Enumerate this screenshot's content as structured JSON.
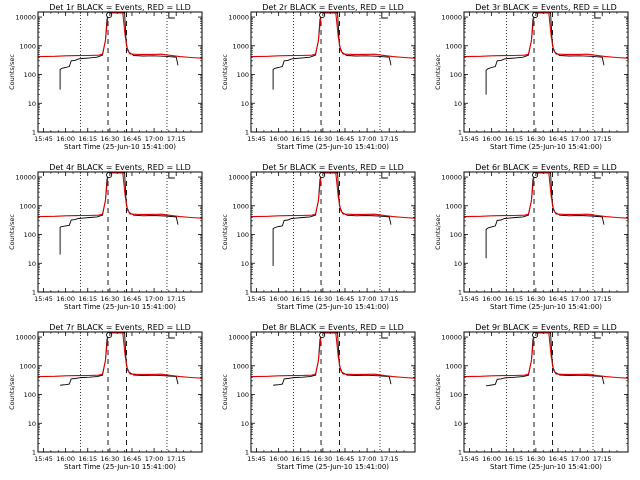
{
  "chart_data": {
    "type": "line",
    "title_suffix": "BLACK = Events, RED = LLD",
    "xlabel": "Start Time (25-Jun-10 15:41:00)",
    "ylabel": "Counts/sec",
    "y_scale": "log",
    "ylim": [
      1,
      15000
    ],
    "xlim": [
      -0.15,
      4.3
    ],
    "x_tick_labels": [
      "15:45",
      "16:00",
      "16:15",
      "16:30",
      "16:45",
      "17:00",
      "17:15"
    ],
    "y_tick_labels": [
      "1",
      "10",
      "100",
      "1000",
      "10000"
    ],
    "y_tick_values": [
      1,
      10,
      100,
      1000,
      10000
    ],
    "dotted_lines_x": [
      1.0,
      3.35
    ],
    "dashed_lines_x": [
      1.75,
      2.25
    ],
    "top_markers": [
      {
        "x": 1.78,
        "shape": "circle"
      },
      {
        "x": 3.4,
        "shape": "bracket"
      }
    ],
    "lld_curve": [
      [
        -0.15,
        420
      ],
      [
        0.3,
        430
      ],
      [
        0.6,
        450
      ],
      [
        0.9,
        455
      ],
      [
        1.2,
        460
      ],
      [
        1.5,
        470
      ],
      [
        1.6,
        520
      ],
      [
        1.68,
        1500
      ],
      [
        1.72,
        5000
      ],
      [
        1.76,
        14000
      ],
      [
        2.15,
        14000
      ],
      [
        2.22,
        2000
      ],
      [
        2.28,
        700
      ],
      [
        2.35,
        520
      ],
      [
        2.6,
        500
      ],
      [
        2.9,
        500
      ],
      [
        3.2,
        510
      ],
      [
        3.4,
        470
      ],
      [
        3.7,
        420
      ],
      [
        4.0,
        390
      ],
      [
        4.3,
        370
      ]
    ],
    "panels": [
      {
        "label": "Det 1r",
        "events": [
          [
            0.45,
            30
          ],
          [
            0.45,
            150
          ],
          [
            0.5,
            165
          ],
          [
            0.6,
            175
          ],
          [
            0.7,
            190
          ],
          [
            0.75,
            300
          ],
          [
            0.85,
            310
          ],
          [
            0.95,
            350
          ],
          [
            1.05,
            360
          ],
          [
            1.25,
            380
          ],
          [
            1.45,
            400
          ],
          [
            1.6,
            470
          ],
          [
            1.68,
            1500
          ],
          [
            1.72,
            8000
          ],
          [
            1.76,
            14000
          ],
          [
            2.2,
            14000
          ],
          [
            2.25,
            1000
          ],
          [
            2.32,
            600
          ],
          [
            2.45,
            460
          ],
          [
            2.7,
            440
          ],
          [
            3.0,
            450
          ],
          [
            3.3,
            430
          ],
          [
            3.6,
            400
          ],
          [
            3.65,
            210
          ]
        ]
      },
      {
        "label": "Det 2r",
        "events": [
          [
            0.45,
            30
          ],
          [
            0.45,
            150
          ],
          [
            0.5,
            165
          ],
          [
            0.6,
            175
          ],
          [
            0.7,
            190
          ],
          [
            0.75,
            300
          ],
          [
            0.85,
            310
          ],
          [
            0.95,
            350
          ],
          [
            1.05,
            360
          ],
          [
            1.25,
            380
          ],
          [
            1.45,
            400
          ],
          [
            1.6,
            470
          ],
          [
            1.68,
            1500
          ],
          [
            1.72,
            8000
          ],
          [
            1.76,
            14000
          ],
          [
            2.2,
            14000
          ],
          [
            2.25,
            1000
          ],
          [
            2.32,
            600
          ],
          [
            2.45,
            460
          ],
          [
            2.7,
            440
          ],
          [
            3.0,
            450
          ],
          [
            3.3,
            430
          ],
          [
            3.6,
            400
          ],
          [
            3.65,
            210
          ]
        ]
      },
      {
        "label": "Det 3r",
        "events": [
          [
            0.45,
            20
          ],
          [
            0.45,
            140
          ],
          [
            0.5,
            160
          ],
          [
            0.6,
            175
          ],
          [
            0.7,
            190
          ],
          [
            0.75,
            300
          ],
          [
            0.85,
            310
          ],
          [
            0.95,
            350
          ],
          [
            1.05,
            360
          ],
          [
            1.25,
            380
          ],
          [
            1.45,
            400
          ],
          [
            1.6,
            470
          ],
          [
            1.68,
            1500
          ],
          [
            1.72,
            8000
          ],
          [
            1.76,
            14000
          ],
          [
            2.2,
            14000
          ],
          [
            2.25,
            1000
          ],
          [
            2.32,
            600
          ],
          [
            2.45,
            460
          ],
          [
            2.7,
            440
          ],
          [
            3.0,
            450
          ],
          [
            3.3,
            430
          ],
          [
            3.6,
            400
          ],
          [
            3.65,
            210
          ]
        ]
      },
      {
        "label": "Det 4r",
        "events": [
          [
            0.45,
            20
          ],
          [
            0.45,
            180
          ],
          [
            0.5,
            190
          ],
          [
            0.6,
            200
          ],
          [
            0.7,
            210
          ],
          [
            0.75,
            320
          ],
          [
            0.85,
            330
          ],
          [
            0.95,
            360
          ],
          [
            1.05,
            370
          ],
          [
            1.25,
            390
          ],
          [
            1.45,
            410
          ],
          [
            1.6,
            470
          ],
          [
            1.68,
            1500
          ],
          [
            1.72,
            8000
          ],
          [
            1.76,
            14000
          ],
          [
            2.2,
            14000
          ],
          [
            2.25,
            1000
          ],
          [
            2.32,
            600
          ],
          [
            2.45,
            470
          ],
          [
            2.7,
            450
          ],
          [
            3.0,
            460
          ],
          [
            3.3,
            440
          ],
          [
            3.6,
            410
          ],
          [
            3.65,
            220
          ]
        ]
      },
      {
        "label": "Det 5r",
        "events": [
          [
            0.45,
            8
          ],
          [
            0.45,
            160
          ],
          [
            0.5,
            175
          ],
          [
            0.6,
            190
          ],
          [
            0.7,
            200
          ],
          [
            0.75,
            310
          ],
          [
            0.85,
            320
          ],
          [
            0.95,
            360
          ],
          [
            1.05,
            370
          ],
          [
            1.25,
            390
          ],
          [
            1.45,
            410
          ],
          [
            1.6,
            470
          ],
          [
            1.68,
            1500
          ],
          [
            1.72,
            8000
          ],
          [
            1.76,
            14000
          ],
          [
            2.2,
            14000
          ],
          [
            2.25,
            1000
          ],
          [
            2.32,
            600
          ],
          [
            2.45,
            470
          ],
          [
            2.7,
            450
          ],
          [
            3.0,
            460
          ],
          [
            3.3,
            440
          ],
          [
            3.6,
            410
          ],
          [
            3.65,
            220
          ]
        ]
      },
      {
        "label": "Det 6r",
        "events": [
          [
            0.45,
            15
          ],
          [
            0.45,
            150
          ],
          [
            0.5,
            170
          ],
          [
            0.6,
            185
          ],
          [
            0.7,
            200
          ],
          [
            0.75,
            310
          ],
          [
            0.85,
            320
          ],
          [
            0.95,
            360
          ],
          [
            1.05,
            370
          ],
          [
            1.25,
            390
          ],
          [
            1.45,
            410
          ],
          [
            1.6,
            470
          ],
          [
            1.68,
            1500
          ],
          [
            1.72,
            8000
          ],
          [
            1.76,
            14000
          ],
          [
            2.2,
            14000
          ],
          [
            2.25,
            1000
          ],
          [
            2.32,
            600
          ],
          [
            2.45,
            470
          ],
          [
            2.7,
            450
          ],
          [
            3.0,
            460
          ],
          [
            3.3,
            440
          ],
          [
            3.6,
            410
          ],
          [
            3.65,
            220
          ]
        ]
      },
      {
        "label": "Det 7r",
        "events": [
          [
            0.45,
            210
          ],
          [
            0.5,
            215
          ],
          [
            0.6,
            220
          ],
          [
            0.7,
            230
          ],
          [
            0.75,
            350
          ],
          [
            0.85,
            360
          ],
          [
            0.95,
            380
          ],
          [
            1.05,
            390
          ],
          [
            1.25,
            400
          ],
          [
            1.45,
            420
          ],
          [
            1.6,
            470
          ],
          [
            1.68,
            1500
          ],
          [
            1.72,
            8000
          ],
          [
            1.76,
            14000
          ],
          [
            2.2,
            14000
          ],
          [
            2.25,
            1000
          ],
          [
            2.32,
            600
          ],
          [
            2.45,
            480
          ],
          [
            2.7,
            460
          ],
          [
            3.0,
            470
          ],
          [
            3.3,
            450
          ],
          [
            3.6,
            420
          ],
          [
            3.65,
            230
          ]
        ]
      },
      {
        "label": "Det 8r",
        "events": [
          [
            0.45,
            210
          ],
          [
            0.5,
            215
          ],
          [
            0.6,
            220
          ],
          [
            0.7,
            230
          ],
          [
            0.75,
            350
          ],
          [
            0.85,
            360
          ],
          [
            0.95,
            380
          ],
          [
            1.05,
            390
          ],
          [
            1.25,
            400
          ],
          [
            1.45,
            420
          ],
          [
            1.6,
            470
          ],
          [
            1.68,
            1500
          ],
          [
            1.72,
            8000
          ],
          [
            1.76,
            14000
          ],
          [
            2.2,
            14000
          ],
          [
            2.25,
            1000
          ],
          [
            2.32,
            600
          ],
          [
            2.45,
            480
          ],
          [
            2.7,
            460
          ],
          [
            3.0,
            470
          ],
          [
            3.3,
            450
          ],
          [
            3.6,
            420
          ],
          [
            3.65,
            230
          ]
        ]
      },
      {
        "label": "Det 9r",
        "events": [
          [
            0.45,
            200
          ],
          [
            0.5,
            205
          ],
          [
            0.6,
            215
          ],
          [
            0.7,
            225
          ],
          [
            0.75,
            340
          ],
          [
            0.85,
            350
          ],
          [
            0.95,
            375
          ],
          [
            1.05,
            385
          ],
          [
            1.25,
            400
          ],
          [
            1.45,
            420
          ],
          [
            1.6,
            470
          ],
          [
            1.68,
            1500
          ],
          [
            1.72,
            8000
          ],
          [
            1.76,
            14000
          ],
          [
            2.2,
            14000
          ],
          [
            2.25,
            1000
          ],
          [
            2.32,
            600
          ],
          [
            2.45,
            480
          ],
          [
            2.7,
            460
          ],
          [
            3.0,
            470
          ],
          [
            3.3,
            450
          ],
          [
            3.6,
            420
          ],
          [
            3.65,
            230
          ]
        ]
      }
    ]
  }
}
